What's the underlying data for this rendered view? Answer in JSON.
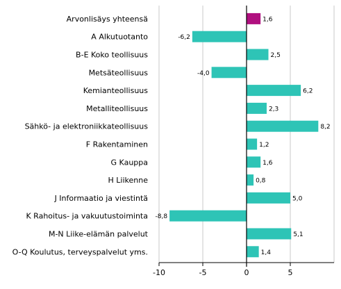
{
  "chart_data": {
    "type": "bar",
    "orientation": "horizontal",
    "categories": [
      "Arvonlisäys yhteensä",
      "A Alkutuotanto",
      "B-E Koko teollisuus",
      "Metsäteollisuus",
      "Kemianteollisuus",
      "Metalliteollisuus",
      "Sähkö- ja elektroniikkateollisuus",
      "F Rakentaminen",
      "G Kauppa",
      "H Liikenne",
      "J Informaatio ja viestintä",
      "K Rahoitus- ja vakuutustoiminta",
      "M-N Liike-elämän palvelut",
      "O-Q Koulutus, terveyspalvelut yms."
    ],
    "values": [
      1.6,
      -6.2,
      2.5,
      -4.0,
      6.2,
      2.3,
      8.2,
      1.2,
      1.6,
      0.8,
      5.0,
      -8.8,
      5.1,
      1.4
    ],
    "value_labels": [
      "1,6",
      "-6,2",
      "2,5",
      "-4,0",
      "6,2",
      "2,3",
      "8,2",
      "1,2",
      "1,6",
      "0,8",
      "5,0",
      "-8,8",
      "5,1",
      "1,4"
    ],
    "highlight_index": 0,
    "colors": {
      "highlight": "#b0107f",
      "default": "#2ec4b6"
    },
    "xlim": [
      -10,
      10
    ],
    "x_ticks": [
      -10,
      -5,
      0,
      5
    ],
    "x_tick_labels": [
      "-10",
      "-5",
      "0",
      "5"
    ],
    "grid": true,
    "legend": "none"
  }
}
